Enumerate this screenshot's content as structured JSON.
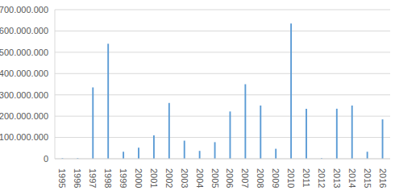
{
  "chart_data": {
    "type": "bar",
    "categories": [
      "1995",
      "1996",
      "1997",
      "1998",
      "1999",
      "2000",
      "2001",
      "2002",
      "2003",
      "2004",
      "2005",
      "2006",
      "2007",
      "2008",
      "2009",
      "2010",
      "2011",
      "2012",
      "2013",
      "2014",
      "2015",
      "2016"
    ],
    "values": [
      3000000,
      3000000,
      335000000,
      540000000,
      33000000,
      52000000,
      110000000,
      262000000,
      85000000,
      37000000,
      78000000,
      222000000,
      350000000,
      250000000,
      47000000,
      635000000,
      235000000,
      3000000,
      235000000,
      250000000,
      33000000,
      185000000
    ],
    "color": "#5b9bd5",
    "ylim": [
      0,
      700000000
    ],
    "yticks": [
      0,
      {
        "value": 100000000,
        "label": "100.000.000"
      },
      {
        "value": 200000000,
        "label": "200.000.000"
      },
      {
        "value": 300000000,
        "label": "300.000.000"
      },
      {
        "value": 400000000,
        "label": "400.000.000"
      },
      {
        "value": 500000000,
        "label": "500.000.000"
      },
      {
        "value": 600000000,
        "label": "600.000.000"
      },
      {
        "value": 700000000,
        "label": "700.000.000"
      }
    ],
    "grid": true
  }
}
